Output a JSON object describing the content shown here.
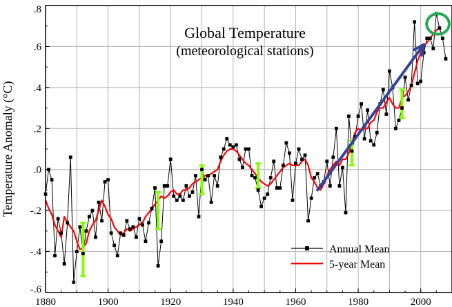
{
  "chart_data": {
    "type": "line",
    "title": "Global Temperature",
    "subtitle": "(meteorological stations)",
    "xlabel": "",
    "ylabel": "Temperature Anomaly (°C)",
    "xlim": [
      1880,
      2010
    ],
    "ylim": [
      -0.6,
      0.8
    ],
    "x_ticks": [
      1880,
      1900,
      1920,
      1940,
      1960,
      1980,
      2000
    ],
    "x_tick_labels": [
      "1880",
      "1900",
      "1920",
      "1940",
      "1960",
      "1980",
      "2000"
    ],
    "y_ticks": [
      -0.6,
      -0.4,
      -0.2,
      0.0,
      0.2,
      0.4,
      0.6,
      0.8
    ],
    "y_tick_labels": [
      "-.6",
      "-.4",
      "-.2",
      ".0",
      ".2",
      ".4",
      ".6",
      ".8"
    ],
    "grid": true,
    "legend_position": "bottom-right",
    "series": [
      {
        "name": "Annual Mean",
        "color": "#000000",
        "marker": "square",
        "x": [
          1880,
          1881,
          1882,
          1883,
          1884,
          1885,
          1886,
          1887,
          1888,
          1889,
          1890,
          1891,
          1892,
          1893,
          1894,
          1895,
          1896,
          1897,
          1898,
          1899,
          1900,
          1901,
          1902,
          1903,
          1904,
          1905,
          1906,
          1907,
          1908,
          1909,
          1910,
          1911,
          1912,
          1913,
          1914,
          1915,
          1916,
          1917,
          1918,
          1919,
          1920,
          1921,
          1922,
          1923,
          1924,
          1925,
          1926,
          1927,
          1928,
          1929,
          1930,
          1931,
          1932,
          1933,
          1934,
          1935,
          1936,
          1937,
          1938,
          1939,
          1940,
          1941,
          1942,
          1943,
          1944,
          1945,
          1946,
          1947,
          1948,
          1949,
          1950,
          1951,
          1952,
          1953,
          1954,
          1955,
          1956,
          1957,
          1958,
          1959,
          1960,
          1961,
          1962,
          1963,
          1964,
          1965,
          1966,
          1967,
          1968,
          1969,
          1970,
          1971,
          1972,
          1973,
          1974,
          1975,
          1976,
          1977,
          1978,
          1979,
          1980,
          1981,
          1982,
          1983,
          1984,
          1985,
          1986,
          1987,
          1988,
          1989,
          1990,
          1991,
          1992,
          1993,
          1994,
          1995,
          1996,
          1997,
          1998,
          1999,
          2000,
          2001,
          2002,
          2003,
          2004,
          2005,
          2006,
          2007,
          2008
        ],
        "y": [
          -0.12,
          0.0,
          -0.05,
          -0.42,
          -0.24,
          -0.31,
          -0.46,
          -0.26,
          0.06,
          -0.55,
          -0.4,
          -0.28,
          -0.41,
          -0.3,
          -0.23,
          -0.2,
          -0.33,
          -0.16,
          -0.25,
          -0.06,
          -0.05,
          -0.31,
          -0.37,
          -0.42,
          -0.31,
          -0.32,
          -0.25,
          -0.29,
          -0.28,
          -0.33,
          -0.24,
          -0.27,
          -0.35,
          -0.26,
          -0.19,
          -0.09,
          -0.47,
          -0.35,
          -0.08,
          -0.08,
          0.05,
          -0.13,
          -0.15,
          -0.13,
          -0.15,
          -0.08,
          -0.13,
          -0.11,
          -0.03,
          -0.23,
          0.0,
          -0.05,
          -0.03,
          -0.16,
          -0.03,
          -0.08,
          0.06,
          0.1,
          0.15,
          0.12,
          0.11,
          0.12,
          0.05,
          0.01,
          0.1,
          0.1,
          -0.03,
          -0.04,
          -0.1,
          -0.18,
          -0.14,
          -0.12,
          -0.04,
          0.04,
          -0.09,
          -0.09,
          0.02,
          0.13,
          0.08,
          -0.15,
          0.03,
          0.1,
          0.05,
          0.07,
          -0.25,
          -0.14,
          -0.04,
          -0.02,
          -0.08,
          -0.06,
          0.04,
          -0.08,
          0.06,
          0.2,
          -0.08,
          0.01,
          -0.21,
          0.26,
          0.09,
          0.16,
          0.26,
          0.32,
          0.15,
          0.29,
          0.14,
          0.12,
          0.18,
          0.32,
          0.39,
          0.27,
          0.48,
          0.4,
          0.2,
          0.24,
          0.3,
          0.45,
          0.34,
          0.41,
          0.72,
          0.42,
          0.43,
          0.57,
          0.64,
          0.64,
          0.59,
          0.76,
          0.69,
          0.64,
          0.54
        ]
      },
      {
        "name": "5-year Mean",
        "color": "#ff0000",
        "x": [
          1880,
          1881,
          1882,
          1883,
          1884,
          1885,
          1886,
          1887,
          1888,
          1889,
          1890,
          1891,
          1892,
          1893,
          1894,
          1895,
          1896,
          1897,
          1898,
          1899,
          1900,
          1901,
          1902,
          1903,
          1904,
          1905,
          1906,
          1907,
          1908,
          1909,
          1910,
          1911,
          1912,
          1913,
          1914,
          1915,
          1916,
          1917,
          1918,
          1919,
          1920,
          1921,
          1922,
          1923,
          1924,
          1925,
          1926,
          1927,
          1928,
          1929,
          1930,
          1931,
          1932,
          1933,
          1934,
          1935,
          1936,
          1937,
          1938,
          1939,
          1940,
          1941,
          1942,
          1943,
          1944,
          1945,
          1946,
          1947,
          1948,
          1949,
          1950,
          1951,
          1952,
          1953,
          1954,
          1955,
          1956,
          1957,
          1958,
          1959,
          1960,
          1961,
          1962,
          1963,
          1964,
          1965,
          1966,
          1967,
          1968,
          1969,
          1970,
          1971,
          1972,
          1973,
          1974,
          1975,
          1976,
          1977,
          1978,
          1979,
          1980,
          1981,
          1982,
          1983,
          1984,
          1985,
          1986,
          1987,
          1988,
          1989,
          1990,
          1991,
          1992,
          1993,
          1994,
          1995,
          1996,
          1997,
          1998,
          1999,
          2000,
          2001,
          2002,
          2003,
          2004,
          2005,
          2006
        ],
        "y": [
          -0.15,
          -0.19,
          -0.22,
          -0.27,
          -0.3,
          -0.33,
          -0.23,
          -0.26,
          -0.28,
          -0.3,
          -0.35,
          -0.39,
          -0.38,
          -0.36,
          -0.3,
          -0.27,
          -0.25,
          -0.2,
          -0.15,
          -0.18,
          -0.22,
          -0.24,
          -0.28,
          -0.3,
          -0.32,
          -0.31,
          -0.29,
          -0.3,
          -0.29,
          -0.28,
          -0.27,
          -0.26,
          -0.23,
          -0.21,
          -0.19,
          -0.17,
          -0.15,
          -0.13,
          -0.14,
          -0.13,
          -0.11,
          -0.1,
          -0.12,
          -0.12,
          -0.1,
          -0.1,
          -0.09,
          -0.07,
          -0.06,
          -0.05,
          -0.04,
          -0.03,
          -0.03,
          -0.02,
          -0.01,
          0.0,
          0.04,
          0.07,
          0.09,
          0.1,
          0.1,
          0.09,
          0.07,
          0.05,
          0.03,
          0.02,
          0.0,
          -0.02,
          -0.04,
          -0.06,
          -0.07,
          -0.08,
          -0.07,
          -0.05,
          -0.03,
          -0.01,
          0.01,
          0.02,
          0.03,
          0.02,
          0.02,
          0.02,
          0.04,
          0.05,
          0.02,
          -0.04,
          -0.06,
          -0.09,
          -0.1,
          -0.07,
          -0.03,
          0.0,
          0.02,
          0.04,
          0.02,
          0.05,
          0.05,
          0.08,
          0.13,
          0.18,
          0.2,
          0.19,
          0.2,
          0.2,
          0.23,
          0.24,
          0.28,
          0.3,
          0.3,
          0.33,
          0.35,
          0.32,
          0.3,
          0.3,
          0.35,
          0.36,
          0.38,
          0.41,
          0.47,
          0.53,
          0.57,
          0.6,
          0.62,
          0.64,
          0.66,
          0.68,
          0.69
        ]
      }
    ],
    "error_bars": {
      "color": "#80ff00",
      "x": [
        1892,
        1916,
        1930,
        1948,
        1978,
        1994
      ],
      "center": [
        -0.39,
        -0.2,
        -0.05,
        -0.03,
        0.08,
        0.32
      ],
      "half_width": [
        0.13,
        0.09,
        0.07,
        0.06,
        0.06,
        0.07
      ]
    },
    "annotations": {
      "trend_arrow": {
        "color": "#334499",
        "from": [
          1967,
          -0.1
        ],
        "to": [
          2001,
          0.61
        ]
      },
      "circle": {
        "color": "#22aa55",
        "center": [
          2005.5,
          0.71
        ],
        "radius_years": 3.6,
        "radius_y": 0.05
      }
    }
  }
}
